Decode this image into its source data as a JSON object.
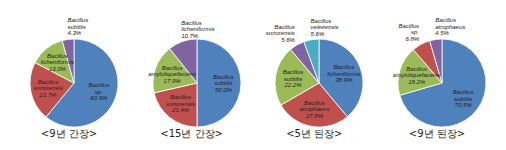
{
  "chart_data": [
    {
      "type": "pie",
      "title": "<9년 간장>",
      "categories": [
        "Bacillus sp.",
        "Bacillus sonorensis",
        "Bacillus licheniformis",
        "Bacillus subtilis"
      ],
      "values": [
        60.9,
        21.7,
        13.0,
        4.3
      ],
      "value_labels": [
        "60.9%",
        "21.7%",
        "13.0%",
        "4.3%"
      ],
      "colors": [
        "#4f81bd",
        "#c0504d",
        "#9bbb59",
        "#8064a2"
      ],
      "data_labels": true
    },
    {
      "type": "pie",
      "title": "<15년 간장>",
      "categories": [
        "Bacillus subtilis",
        "Bacillus sonorensis",
        "Bacillus amyloliquefaciens",
        "Bacillus licheniformis"
      ],
      "values": [
        50.0,
        21.4,
        17.9,
        10.7
      ],
      "value_labels": [
        "50.0%",
        "21.4%",
        "17.9%",
        "10.7%"
      ],
      "colors": [
        "#4f81bd",
        "#c0504d",
        "#9bbb59",
        "#8064a2"
      ],
      "data_labels": true
    },
    {
      "type": "pie",
      "title": "<5년 된장>",
      "categories": [
        "Bacillus licheniformis",
        "Bacillus atrophaeus",
        "Bacillus subtilis",
        "Bacillus sonorensis",
        "Bacillus velezensis"
      ],
      "values": [
        38.9,
        27.8,
        22.2,
        5.6,
        5.6
      ],
      "value_labels": [
        "38.9%",
        "27.8%",
        "22.2%",
        "5.6%",
        "5.6%"
      ],
      "colors": [
        "#4f81bd",
        "#c0504d",
        "#9bbb59",
        "#8064a2",
        "#4bacc6"
      ],
      "data_labels": true
    },
    {
      "type": "pie",
      "title": "<9년 된장>",
      "categories": [
        "Bacillus subtilis",
        "Bacillus amyloliquefaciens",
        "Bacillus sp.",
        "Bacillus atrophaeus"
      ],
      "values": [
        70.5,
        18.2,
        6.8,
        4.5
      ],
      "value_labels": [
        "70.5%",
        "18.2%",
        "6.8%",
        "4.5%"
      ],
      "colors": [
        "#4f81bd",
        "#9bbb59",
        "#c0504d",
        "#8064a2"
      ],
      "data_labels": true
    }
  ]
}
